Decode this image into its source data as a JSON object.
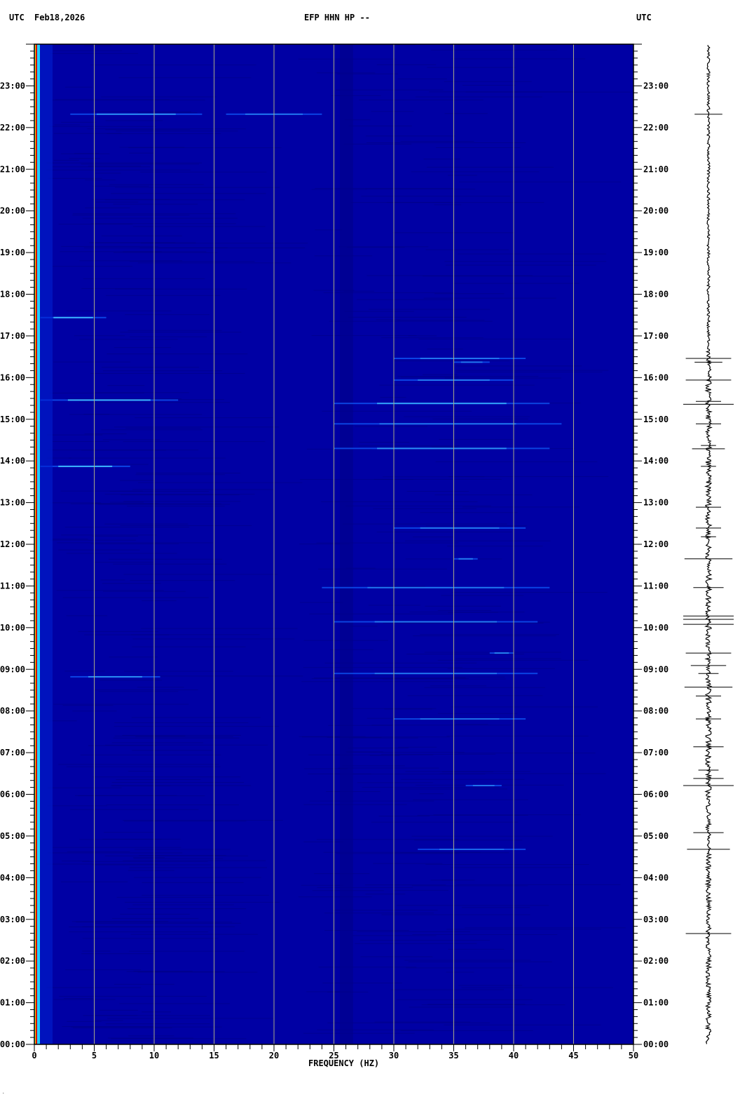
{
  "header": {
    "left_tz": "UTC",
    "date": "Feb18,2026",
    "station": "EFP HHN HP --",
    "right_tz": "UTC"
  },
  "chart_data": {
    "type": "heatmap",
    "subtype": "spectrogram",
    "title": "EFP HHN HP --",
    "xlabel": "FREQUENCY (HZ)",
    "xlim": [
      0,
      50
    ],
    "x_ticks": [
      0,
      5,
      10,
      15,
      20,
      25,
      30,
      35,
      40,
      45,
      50
    ],
    "x_tick_labels": [
      "0",
      "5",
      "10",
      "15",
      "20",
      "25",
      "30",
      "35",
      "40",
      "45",
      "50"
    ],
    "ylim_hours": [
      0,
      24
    ],
    "y_tick_labels": [
      "00:00",
      "01:00",
      "02:00",
      "03:00",
      "04:00",
      "05:00",
      "06:00",
      "07:00",
      "08:00",
      "09:00",
      "10:00",
      "11:00",
      "12:00",
      "13:00",
      "14:00",
      "15:00",
      "16:00",
      "17:00",
      "18:00",
      "19:00",
      "20:00",
      "21:00",
      "22:00",
      "23:00"
    ],
    "grid": "vertical every 5 Hz",
    "colors": {
      "background": "#0000a4",
      "grid": "#a8a888",
      "low_freq_peak": "#e00000",
      "event": "#40c0ff",
      "trace": "#000000"
    },
    "low_freq_energy_band_hz": [
      0,
      0.6
    ],
    "events": [
      {
        "hour": 22.32,
        "f": [
          3,
          14
        ],
        "level": 0.6
      },
      {
        "hour": 22.32,
        "f": [
          16,
          24
        ],
        "level": 0.4
      },
      {
        "hour": 17.44,
        "f": [
          0.5,
          6
        ],
        "level": 0.9
      },
      {
        "hour": 15.46,
        "f": [
          0.5,
          12
        ],
        "level": 0.9
      },
      {
        "hour": 13.87,
        "f": [
          0.5,
          8
        ],
        "level": 0.9
      },
      {
        "hour": 8.82,
        "f": [
          3,
          10.5
        ],
        "level": 0.6
      },
      {
        "hour": 16.46,
        "f": [
          30,
          41
        ],
        "level": 0.4
      },
      {
        "hour": 16.37,
        "f": [
          35,
          38
        ],
        "level": 0.4
      },
      {
        "hour": 15.94,
        "f": [
          30,
          40
        ],
        "level": 0.45
      },
      {
        "hour": 15.38,
        "f": [
          25,
          43
        ],
        "level": 0.75
      },
      {
        "hour": 14.89,
        "f": [
          25,
          44
        ],
        "level": 0.4
      },
      {
        "hour": 14.3,
        "f": [
          25,
          43
        ],
        "level": 0.6
      },
      {
        "hour": 12.39,
        "f": [
          30,
          41
        ],
        "level": 0.45
      },
      {
        "hour": 11.65,
        "f": [
          35,
          37
        ],
        "level": 0.45
      },
      {
        "hour": 10.96,
        "f": [
          24,
          43
        ],
        "level": 0.4
      },
      {
        "hour": 10.14,
        "f": [
          25,
          42
        ],
        "level": 0.45
      },
      {
        "hour": 9.39,
        "f": [
          38,
          40
        ],
        "level": 0.5
      },
      {
        "hour": 8.9,
        "f": [
          25,
          42
        ],
        "level": 0.4
      },
      {
        "hour": 7.81,
        "f": [
          30,
          41
        ],
        "level": 0.35
      },
      {
        "hour": 6.21,
        "f": [
          36,
          39
        ],
        "level": 0.4
      },
      {
        "hour": 4.68,
        "f": [
          32,
          41
        ],
        "level": 0.3
      }
    ],
    "seismogram_spikes": [
      {
        "hour": 22.32,
        "amp": 0.55
      },
      {
        "hour": 16.46,
        "amp": 0.9
      },
      {
        "hour": 16.37,
        "amp": 0.55
      },
      {
        "hour": 15.94,
        "amp": 0.9
      },
      {
        "hour": 15.43,
        "amp": 0.5
      },
      {
        "hour": 15.36,
        "amp": 1.0
      },
      {
        "hour": 14.89,
        "amp": 0.5
      },
      {
        "hour": 14.37,
        "amp": 0.3
      },
      {
        "hour": 14.29,
        "amp": 0.65
      },
      {
        "hour": 13.87,
        "amp": 0.3
      },
      {
        "hour": 12.89,
        "amp": 0.5
      },
      {
        "hour": 12.39,
        "amp": 0.5
      },
      {
        "hour": 12.18,
        "amp": 0.3
      },
      {
        "hour": 11.65,
        "amp": 0.95
      },
      {
        "hour": 10.96,
        "amp": 0.6
      },
      {
        "hour": 10.28,
        "amp": 1.0
      },
      {
        "hour": 10.2,
        "amp": 1.0
      },
      {
        "hour": 10.08,
        "amp": 1.0
      },
      {
        "hour": 9.39,
        "amp": 0.9
      },
      {
        "hour": 9.09,
        "amp": 0.7
      },
      {
        "hour": 8.9,
        "amp": 0.4
      },
      {
        "hour": 8.57,
        "amp": 0.95
      },
      {
        "hour": 8.36,
        "amp": 0.5
      },
      {
        "hour": 7.81,
        "amp": 0.5
      },
      {
        "hour": 7.14,
        "amp": 0.6
      },
      {
        "hour": 6.58,
        "amp": 0.4
      },
      {
        "hour": 6.38,
        "amp": 0.6
      },
      {
        "hour": 6.21,
        "amp": 1.0
      },
      {
        "hour": 5.08,
        "amp": 0.6
      },
      {
        "hour": 4.68,
        "amp": 0.85
      },
      {
        "hour": 2.66,
        "amp": 0.9
      }
    ]
  }
}
